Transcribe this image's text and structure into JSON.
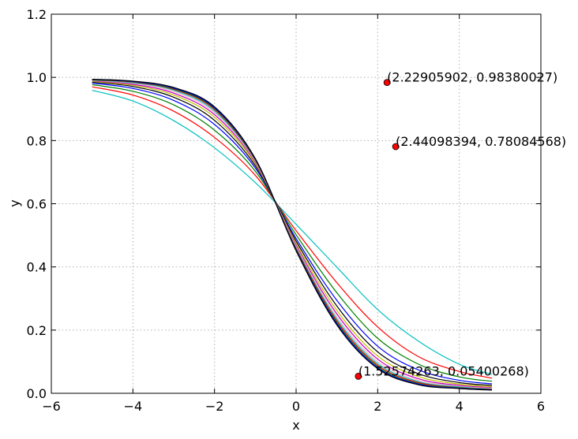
{
  "chart_data": {
    "type": "line",
    "title": "",
    "xlabel": "x",
    "ylabel": "y",
    "xlim": [
      -6,
      6
    ],
    "ylim": [
      0.0,
      1.2
    ],
    "xticks": [
      -6,
      -4,
      -2,
      0,
      2,
      4,
      6
    ],
    "xtick_labels": [
      "−6",
      "−4",
      "−2",
      "0",
      "2",
      "4",
      "6"
    ],
    "yticks": [
      0.0,
      0.2,
      0.4,
      0.6,
      0.8,
      1.0,
      1.2
    ],
    "ytick_labels": [
      "0.0",
      "0.2",
      "0.4",
      "0.6",
      "0.8",
      "1.0",
      "1.2"
    ],
    "grid": true,
    "x_range": [
      -5.0,
      4.8
    ],
    "crossing_point": [
      -0.45,
      0.6
    ],
    "series": [
      {
        "color": "#00bfbf",
        "values": [
          [
            -5.0,
            0.959
          ],
          [
            -4.0,
            0.925
          ],
          [
            -3.0,
            0.863
          ],
          [
            -2.0,
            0.777
          ],
          [
            -1.0,
            0.667
          ],
          [
            0.0,
            0.535
          ],
          [
            1.0,
            0.399
          ],
          [
            2.0,
            0.265
          ],
          [
            3.0,
            0.165
          ],
          [
            4.0,
            0.092
          ],
          [
            4.8,
            0.06
          ]
        ]
      },
      {
        "color": "#ff0000",
        "values": [
          [
            -5.0,
            0.97
          ],
          [
            -4.0,
            0.944
          ],
          [
            -3.0,
            0.893
          ],
          [
            -2.0,
            0.81
          ],
          [
            -1.0,
            0.69
          ],
          [
            0.0,
            0.515
          ],
          [
            1.0,
            0.35
          ],
          [
            2.0,
            0.21
          ],
          [
            3.0,
            0.116
          ],
          [
            4.0,
            0.069
          ],
          [
            4.8,
            0.048
          ]
        ]
      },
      {
        "color": "#008000",
        "values": [
          [
            -5.0,
            0.977
          ],
          [
            -4.0,
            0.956
          ],
          [
            -3.0,
            0.913
          ],
          [
            -2.0,
            0.833
          ],
          [
            -1.0,
            0.703
          ],
          [
            0.0,
            0.502
          ],
          [
            1.0,
            0.318
          ],
          [
            2.0,
            0.174
          ],
          [
            3.0,
            0.092
          ],
          [
            4.0,
            0.052
          ],
          [
            4.8,
            0.038
          ]
        ]
      },
      {
        "color": "#0000ff",
        "values": [
          [
            -5.0,
            0.982
          ],
          [
            -4.0,
            0.965
          ],
          [
            -3.0,
            0.927
          ],
          [
            -2.0,
            0.851
          ],
          [
            -1.0,
            0.713
          ],
          [
            0.0,
            0.49
          ],
          [
            1.0,
            0.294
          ],
          [
            2.0,
            0.149
          ],
          [
            3.0,
            0.074
          ],
          [
            4.0,
            0.041
          ],
          [
            4.8,
            0.03
          ]
        ]
      },
      {
        "color": "#000000",
        "values": [
          [
            -5.0,
            0.985
          ],
          [
            -4.0,
            0.971
          ],
          [
            -3.0,
            0.937
          ],
          [
            -2.0,
            0.864
          ],
          [
            -1.0,
            0.72
          ],
          [
            0.0,
            0.482
          ],
          [
            1.0,
            0.276
          ],
          [
            2.0,
            0.131
          ],
          [
            3.0,
            0.062
          ],
          [
            4.0,
            0.034
          ],
          [
            4.8,
            0.025
          ]
        ]
      },
      {
        "color": "#bfbf00",
        "values": [
          [
            -5.0,
            0.987
          ],
          [
            -4.0,
            0.975
          ],
          [
            -3.0,
            0.944
          ],
          [
            -2.0,
            0.874
          ],
          [
            -1.0,
            0.726
          ],
          [
            0.0,
            0.475
          ],
          [
            1.0,
            0.262
          ],
          [
            2.0,
            0.118
          ],
          [
            3.0,
            0.053
          ],
          [
            4.0,
            0.029
          ],
          [
            4.8,
            0.021
          ]
        ]
      },
      {
        "color": "#bf00bf",
        "values": [
          [
            -5.0,
            0.989
          ],
          [
            -4.0,
            0.978
          ],
          [
            -3.0,
            0.95
          ],
          [
            -2.0,
            0.882
          ],
          [
            -1.0,
            0.73
          ],
          [
            0.0,
            0.469
          ],
          [
            1.0,
            0.251
          ],
          [
            2.0,
            0.108
          ],
          [
            3.0,
            0.046
          ],
          [
            4.0,
            0.025
          ],
          [
            4.8,
            0.018
          ]
        ]
      },
      {
        "color": "#ffb6c1",
        "values": [
          [
            -5.0,
            0.99
          ],
          [
            -4.0,
            0.981
          ],
          [
            -3.0,
            0.955
          ],
          [
            -2.0,
            0.888
          ],
          [
            -1.0,
            0.733
          ],
          [
            0.0,
            0.465
          ],
          [
            1.0,
            0.242
          ],
          [
            2.0,
            0.1
          ],
          [
            3.0,
            0.041
          ],
          [
            4.0,
            0.022
          ],
          [
            4.8,
            0.016
          ]
        ]
      },
      {
        "color": "#00bfbf",
        "values": [
          [
            -5.0,
            0.991
          ],
          [
            -4.0,
            0.983
          ],
          [
            -3.0,
            0.959
          ],
          [
            -2.0,
            0.893
          ],
          [
            -1.0,
            0.736
          ],
          [
            0.0,
            0.461
          ],
          [
            1.0,
            0.235
          ],
          [
            2.0,
            0.094
          ],
          [
            3.0,
            0.037
          ],
          [
            4.0,
            0.02
          ],
          [
            4.8,
            0.014
          ]
        ]
      },
      {
        "color": "#ff0000",
        "values": [
          [
            -5.0,
            0.992
          ],
          [
            -4.0,
            0.985
          ],
          [
            -3.0,
            0.962
          ],
          [
            -2.0,
            0.898
          ],
          [
            -1.0,
            0.738
          ],
          [
            0.0,
            0.458
          ],
          [
            1.0,
            0.229
          ],
          [
            2.0,
            0.089
          ],
          [
            3.0,
            0.034
          ],
          [
            4.0,
            0.018
          ],
          [
            4.8,
            0.013
          ]
        ]
      },
      {
        "color": "#008000",
        "values": [
          [
            -5.0,
            0.993
          ],
          [
            -4.0,
            0.986
          ],
          [
            -3.0,
            0.964
          ],
          [
            -2.0,
            0.901
          ],
          [
            -1.0,
            0.74
          ],
          [
            0.0,
            0.455
          ],
          [
            1.0,
            0.224
          ],
          [
            2.0,
            0.085
          ],
          [
            3.0,
            0.031
          ],
          [
            4.0,
            0.017
          ],
          [
            4.8,
            0.012
          ]
        ]
      },
      {
        "color": "#0000ff",
        "values": [
          [
            -5.0,
            0.994
          ],
          [
            -4.0,
            0.987
          ],
          [
            -3.0,
            0.966
          ],
          [
            -2.0,
            0.904
          ],
          [
            -1.0,
            0.742
          ],
          [
            0.0,
            0.453
          ],
          [
            1.0,
            0.22
          ],
          [
            2.0,
            0.081
          ],
          [
            3.0,
            0.029
          ],
          [
            4.0,
            0.016
          ],
          [
            4.8,
            0.011
          ]
        ]
      },
      {
        "color": "#000000",
        "values": [
          [
            -5.0,
            0.994
          ],
          [
            -4.0,
            0.988
          ],
          [
            -3.0,
            0.968
          ],
          [
            -2.0,
            0.907
          ],
          [
            -1.0,
            0.743
          ],
          [
            0.0,
            0.451
          ],
          [
            1.0,
            0.216
          ],
          [
            2.0,
            0.078
          ],
          [
            3.0,
            0.027
          ],
          [
            4.0,
            0.015
          ],
          [
            4.8,
            0.01
          ]
        ]
      }
    ],
    "points": [
      {
        "x": 2.22905902,
        "y": 0.98380027,
        "label": "(2.22905902, 0.98380027)",
        "color": "#ff0000"
      },
      {
        "x": 2.44098394,
        "y": 0.78084568,
        "label": "(2.44098394, 0.78084568)",
        "color": "#ff0000"
      },
      {
        "x": 1.52574263,
        "y": 0.05400268,
        "label": "(1.52574263, 0.05400268)",
        "color": "#ff0000"
      }
    ]
  }
}
